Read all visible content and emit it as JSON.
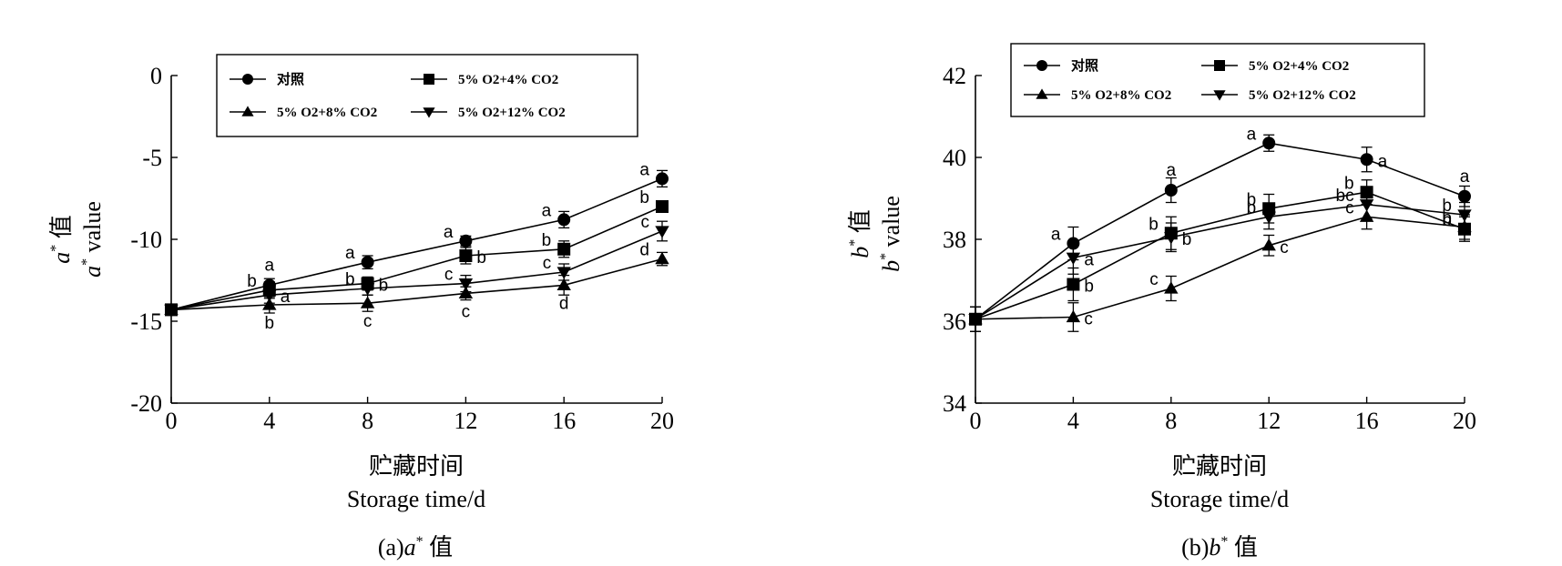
{
  "chart_data": [
    {
      "type": "line",
      "panel": "a",
      "caption": {
        "prefix": "(a)",
        "var": "a",
        "sup": "*",
        "suffix": " 值"
      },
      "xlabel_cn": "贮藏时间",
      "xlabel_en": "Storage time/d",
      "ylabel_cn": {
        "var": "a",
        "sup": "*",
        "suffix": " 值"
      },
      "ylabel_en": {
        "var": "a",
        "sup": "*",
        "suffix": " value"
      },
      "xlim": [
        0,
        20
      ],
      "ylim": [
        -20,
        0
      ],
      "x_ticks": [
        "0",
        "4",
        "8",
        "12",
        "16",
        "20"
      ],
      "y_ticks": [
        "0",
        "-5",
        "-10",
        "-15",
        "-20"
      ],
      "x": [
        0,
        4,
        8,
        12,
        16,
        20
      ],
      "legend_position": "top",
      "series": [
        {
          "name": "对照",
          "marker": "circle",
          "values": [
            -14.3,
            -12.8,
            -11.4,
            -10.1,
            -8.8,
            -6.3
          ],
          "errors": [
            0.3,
            0.4,
            0.4,
            0.3,
            0.5,
            0.5
          ],
          "letters": [
            "",
            "a",
            "a",
            "a",
            "a",
            "a"
          ],
          "letter_side": [
            "",
            "above",
            "left",
            "left",
            "left",
            "left"
          ]
        },
        {
          "name": "5% O2+4% CO2",
          "marker": "square",
          "values": [
            -14.3,
            -13.1,
            -12.7,
            -11.0,
            -10.6,
            -8.0
          ],
          "errors": [
            0.3,
            0.5,
            0.4,
            0.5,
            0.5,
            0.3
          ],
          "letters": [
            "",
            "b",
            "b",
            "b",
            "b",
            "b"
          ],
          "letter_side": [
            "",
            "left",
            "right",
            "right",
            "left",
            "left"
          ]
        },
        {
          "name": "5% O2+8% CO2",
          "marker": "triangle-up",
          "values": [
            -14.3,
            -14.0,
            -13.9,
            -13.3,
            -12.8,
            -11.2
          ],
          "errors": [
            0.3,
            0.5,
            0.5,
            0.4,
            0.6,
            0.4
          ],
          "letters": [
            "",
            "b",
            "c",
            "c",
            "d",
            "d"
          ],
          "letter_side": [
            "",
            "below",
            "below",
            "below",
            "below",
            "left"
          ]
        },
        {
          "name": "5% O2+12% CO2",
          "marker": "triangle-down",
          "values": [
            -14.3,
            -13.4,
            -13.0,
            -12.7,
            -12.0,
            -9.5
          ],
          "errors": [
            0.3,
            0.5,
            0.4,
            0.5,
            0.5,
            0.6
          ],
          "letters": [
            "",
            "a",
            "b",
            "c",
            "c",
            "c"
          ],
          "letter_side": [
            "",
            "right",
            "left",
            "left",
            "left",
            "left"
          ]
        }
      ]
    },
    {
      "type": "line",
      "panel": "b",
      "caption": {
        "prefix": "(b)",
        "var": "b",
        "sup": "*",
        "suffix": " 值"
      },
      "xlabel_cn": "贮藏时间",
      "xlabel_en": "Storage time/d",
      "ylabel_cn": {
        "var": "b",
        "sup": "*",
        "suffix": " 值"
      },
      "ylabel_en": {
        "var": "b",
        "sup": "*",
        "suffix": " value"
      },
      "xlim": [
        0,
        20
      ],
      "ylim": [
        34,
        42
      ],
      "x_ticks": [
        "0",
        "4",
        "8",
        "12",
        "16",
        "20"
      ],
      "y_ticks": [
        "42",
        "40",
        "38",
        "36",
        "34"
      ],
      "x": [
        0,
        4,
        8,
        12,
        16,
        20
      ],
      "legend_position": "top-left",
      "series": [
        {
          "name": "对照",
          "marker": "circle",
          "values": [
            36.05,
            37.9,
            39.2,
            40.35,
            39.95,
            39.05
          ],
          "errors": [
            0.3,
            0.4,
            0.3,
            0.2,
            0.3,
            0.25
          ],
          "letters": [
            "",
            "a",
            "a",
            "a",
            "a",
            "a"
          ],
          "letter_side": [
            "",
            "left",
            "above",
            "left",
            "right",
            "above"
          ]
        },
        {
          "name": "5% O2+4% CO2",
          "marker": "square",
          "values": [
            36.05,
            36.9,
            38.15,
            38.75,
            39.15,
            38.25
          ],
          "errors": [
            0.3,
            0.4,
            0.4,
            0.35,
            0.3,
            0.3
          ],
          "letters": [
            "",
            "b",
            "b",
            "b",
            "b",
            "b"
          ],
          "letter_side": [
            "",
            "right",
            "left",
            "left",
            "left",
            "left"
          ]
        },
        {
          "name": "5% O2+8% CO2",
          "marker": "triangle-up",
          "values": [
            36.05,
            36.1,
            36.8,
            37.85,
            38.55,
            38.3
          ],
          "errors": [
            0.3,
            0.35,
            0.3,
            0.25,
            0.3,
            0.3
          ],
          "letters": [
            "",
            "c",
            "c",
            "c",
            "c",
            "b"
          ],
          "letter_side": [
            "",
            "right",
            "left",
            "right",
            "left",
            "left"
          ]
        },
        {
          "name": "5% O2+12% CO2",
          "marker": "triangle-down",
          "values": [
            36.05,
            37.55,
            38.05,
            38.55,
            38.85,
            38.6
          ],
          "errors": [
            0.3,
            0.4,
            0.35,
            0.3,
            0.35,
            0.3
          ],
          "letters": [
            "",
            "a",
            "b",
            "b",
            "bc",
            "b"
          ],
          "letter_side": [
            "",
            "right",
            "right",
            "left",
            "left",
            "left"
          ]
        }
      ]
    }
  ]
}
